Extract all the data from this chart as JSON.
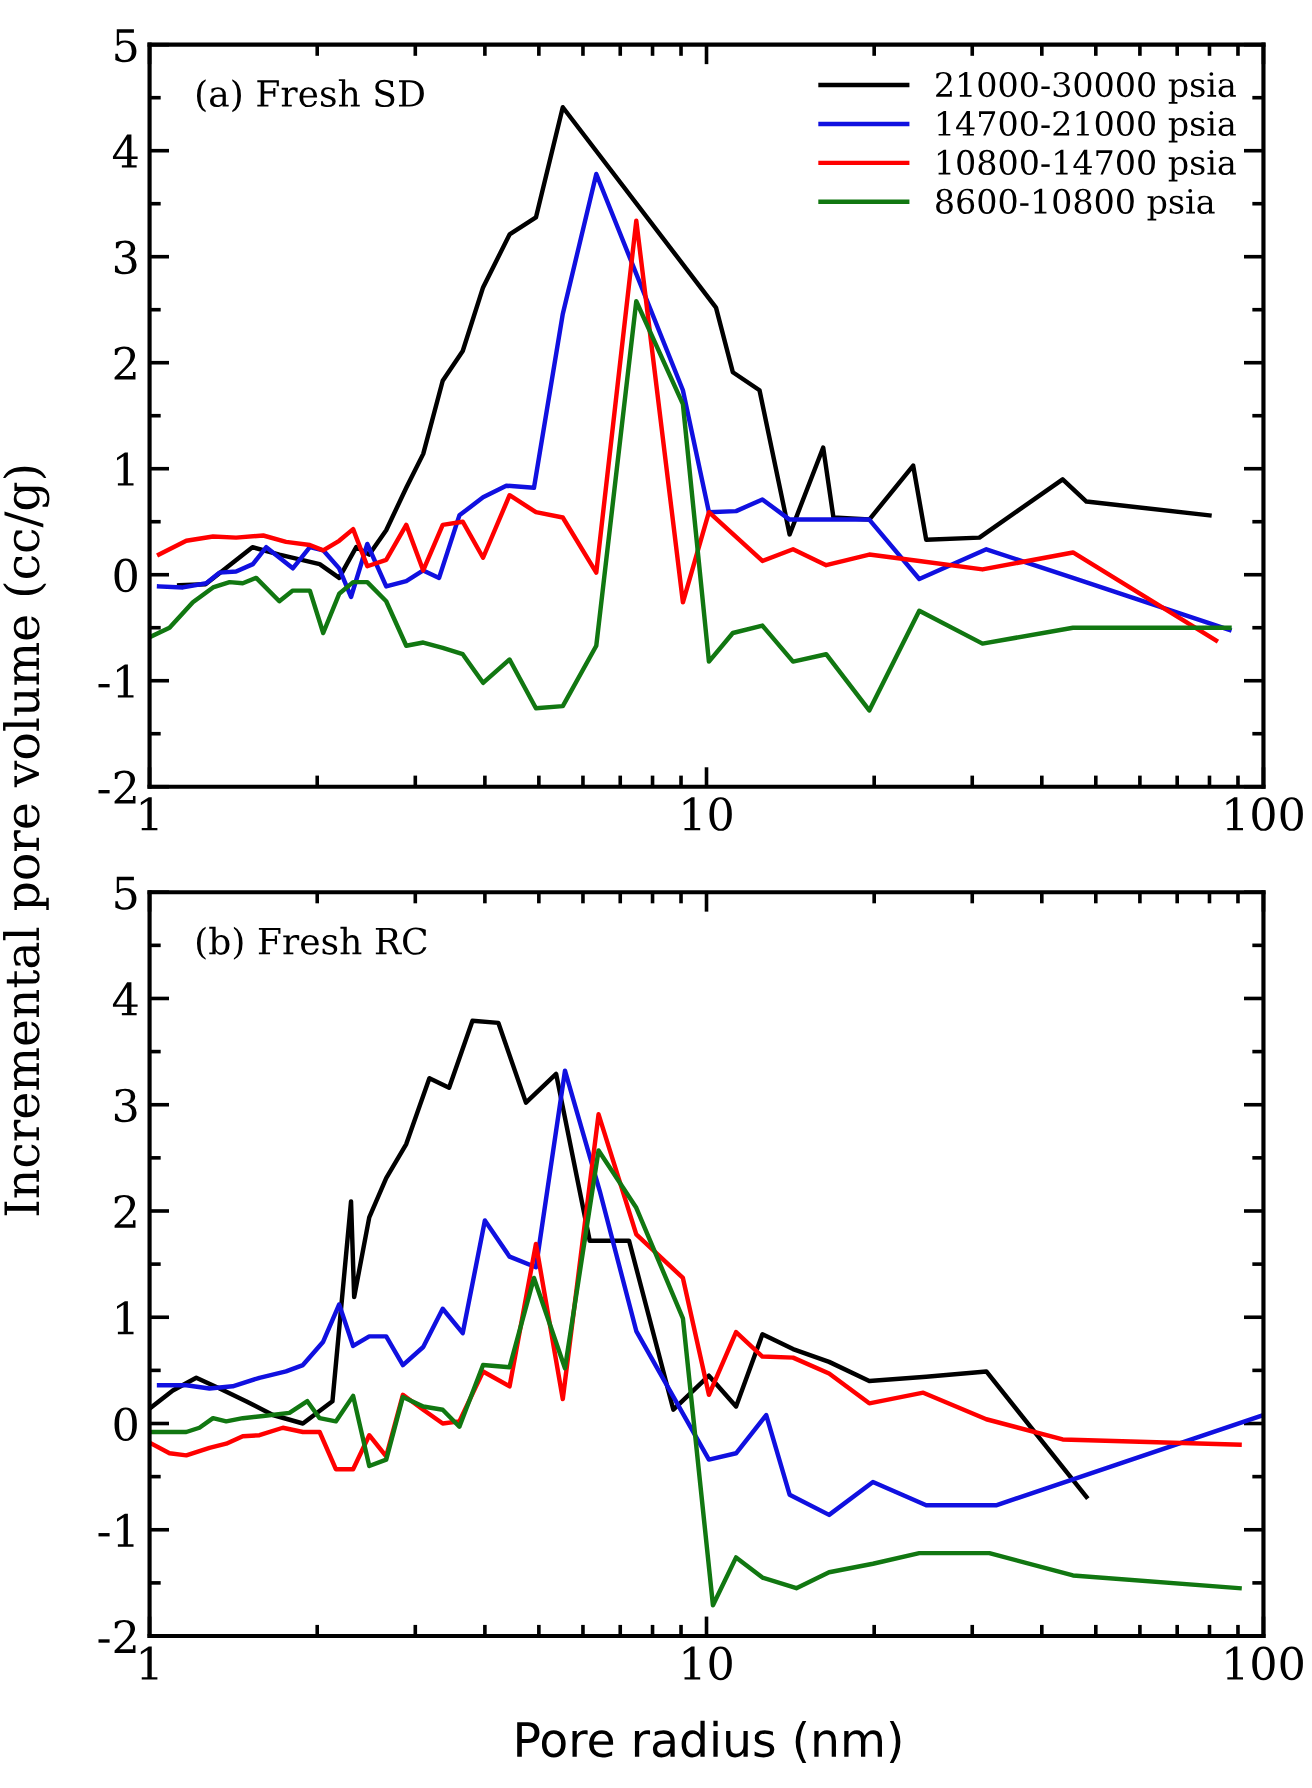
{
  "chart_data": [
    {
      "type": "line",
      "ylabel": "Incremental pore volume (cc/g)",
      "annotations": [
        "(a) Fresh SD"
      ],
      "log": "x",
      "xlim": [
        1,
        100
      ],
      "xticks": [
        1,
        10,
        100
      ],
      "ylim": [
        -2,
        5
      ],
      "yticks": [
        -2,
        -1,
        0,
        1,
        2,
        3,
        4,
        5
      ],
      "grid": false,
      "legend": "top right",
      "series": [
        {
          "name": "21000-30000 psia",
          "color": "#000000",
          "x": [
            1.13,
            1.26,
            1.53,
            1.71,
            2.02,
            2.19,
            2.35,
            2.48,
            2.66,
            2.89,
            3.1,
            3.36,
            3.65,
            3.97,
            4.43,
            4.94,
            5.52,
            10.4,
            11.15,
            12.45,
            14.1,
            16.2,
            16.9,
            19.6,
            23.5,
            24.8,
            30.9,
            43.6,
            48.1,
            80.0
          ],
          "values": [
            -0.1,
            -0.09,
            0.26,
            0.19,
            0.1,
            -0.03,
            0.26,
            0.19,
            0.42,
            0.82,
            1.14,
            1.83,
            2.11,
            2.71,
            3.21,
            3.37,
            4.41,
            2.52,
            1.91,
            1.74,
            0.38,
            1.2,
            0.54,
            0.52,
            1.03,
            0.33,
            0.35,
            0.9,
            0.69,
            0.56
          ]
        },
        {
          "name": "14700-21000 psia",
          "color": "#1010e0",
          "x": [
            1.04,
            1.148,
            1.264,
            1.336,
            1.43,
            1.533,
            1.62,
            1.808,
            1.94,
            2.05,
            2.19,
            2.3,
            2.46,
            2.66,
            2.89,
            3.1,
            3.31,
            3.6,
            3.97,
            4.37,
            4.9,
            5.52,
            6.34,
            9.07,
            10.1,
            11.3,
            12.6,
            14.1,
            19.6,
            24.1,
            31.8,
            45.5,
            86.9
          ],
          "values": [
            -0.11,
            -0.12,
            -0.08,
            0.02,
            0.03,
            0.1,
            0.26,
            0.06,
            0.26,
            0.23,
            0.06,
            -0.21,
            0.29,
            -0.11,
            -0.06,
            0.04,
            -0.03,
            0.56,
            0.73,
            0.84,
            0.82,
            2.46,
            3.78,
            1.74,
            0.59,
            0.6,
            0.71,
            0.52,
            0.52,
            -0.04,
            0.24,
            -0.03,
            -0.52
          ]
        },
        {
          "name": "10800-14700 psia",
          "color": "#ff0000",
          "x": [
            1.04,
            1.164,
            1.3,
            1.43,
            1.6,
            1.758,
            1.94,
            2.05,
            2.19,
            2.32,
            2.46,
            2.66,
            2.89,
            3.1,
            3.36,
            3.65,
            3.97,
            4.43,
            4.94,
            5.52,
            6.34,
            7.48,
            9.07,
            10.1,
            12.6,
            14.3,
            16.4,
            19.6,
            24.1,
            31.3,
            45.5,
            82.2
          ],
          "values": [
            0.19,
            0.32,
            0.36,
            0.35,
            0.37,
            0.31,
            0.28,
            0.23,
            0.32,
            0.43,
            0.08,
            0.14,
            0.47,
            0.04,
            0.47,
            0.5,
            0.16,
            0.75,
            0.59,
            0.54,
            0.02,
            3.34,
            -0.26,
            0.59,
            0.13,
            0.24,
            0.09,
            0.19,
            0.13,
            0.05,
            0.21,
            -0.62
          ]
        },
        {
          "name": "8600-10800 psia",
          "color": "#117711",
          "x": [
            1.0,
            1.086,
            1.196,
            1.3,
            1.392,
            1.47,
            1.554,
            1.71,
            1.808,
            1.94,
            2.05,
            2.19,
            2.32,
            2.46,
            2.66,
            2.89,
            3.1,
            3.36,
            3.65,
            3.97,
            4.43,
            4.94,
            5.52,
            6.34,
            7.48,
            9.07,
            10.1,
            11.15,
            12.6,
            14.3,
            16.4,
            19.6,
            24.1,
            31.3,
            45.5,
            86.9
          ],
          "values": [
            -0.59,
            -0.5,
            -0.26,
            -0.12,
            -0.07,
            -0.08,
            -0.03,
            -0.25,
            -0.15,
            -0.15,
            -0.55,
            -0.18,
            -0.07,
            -0.07,
            -0.25,
            -0.67,
            -0.64,
            -0.69,
            -0.75,
            -1.02,
            -0.8,
            -1.26,
            -1.24,
            -0.67,
            2.58,
            1.61,
            -0.82,
            -0.55,
            -0.48,
            -0.82,
            -0.75,
            -1.28,
            -0.34,
            -0.65,
            -0.5,
            -0.5
          ]
        }
      ]
    },
    {
      "type": "line",
      "xlabel": "Pore radius (nm)",
      "annotations": [
        "(b) Fresh RC"
      ],
      "log": "x",
      "xlim": [
        1,
        100
      ],
      "xticks": [
        1,
        10,
        100
      ],
      "ylim": [
        -2,
        5
      ],
      "yticks": [
        -2,
        -1,
        0,
        1,
        2,
        3,
        4,
        5
      ],
      "grid": false,
      "legend": false,
      "series": [
        {
          "color": "#000000",
          "x": [
            1.0,
            1.101,
            1.213,
            1.336,
            1.49,
            1.665,
            1.885,
            2.13,
            2.3,
            2.33,
            2.48,
            2.66,
            2.89,
            3.18,
            3.45,
            3.8,
            4.23,
            4.74,
            5.37,
            6.17,
            7.26,
            8.72,
            10.1,
            11.3,
            12.6,
            14.3,
            16.6,
            19.6,
            24.8,
            31.8,
            48.1
          ],
          "values": [
            0.14,
            0.31,
            0.43,
            0.33,
            0.21,
            0.08,
            0.0,
            0.21,
            2.09,
            1.19,
            1.94,
            2.31,
            2.63,
            3.25,
            3.16,
            3.79,
            3.77,
            3.02,
            3.29,
            1.72,
            1.72,
            0.13,
            0.45,
            0.16,
            0.84,
            0.7,
            0.58,
            0.4,
            0.44,
            0.49,
            -0.69
          ]
        },
        {
          "color": "#1010e0",
          "x": [
            1.04,
            1.164,
            1.281,
            1.41,
            1.575,
            1.758,
            1.885,
            2.05,
            2.19,
            2.32,
            2.48,
            2.66,
            2.85,
            3.1,
            3.36,
            3.65,
            4.0,
            4.43,
            4.94,
            5.57,
            6.43,
            7.48,
            10.1,
            11.3,
            12.8,
            14.1,
            16.6,
            19.9,
            24.8,
            33.1,
            100
          ],
          "values": [
            0.36,
            0.36,
            0.33,
            0.35,
            0.43,
            0.49,
            0.55,
            0.77,
            1.12,
            0.73,
            0.82,
            0.82,
            0.55,
            0.72,
            1.08,
            0.85,
            1.91,
            1.57,
            1.47,
            3.32,
            2.19,
            0.87,
            -0.34,
            -0.28,
            0.08,
            -0.67,
            -0.86,
            -0.55,
            -0.77,
            -0.77,
            0.08
          ]
        },
        {
          "color": "#ff0000",
          "x": [
            1.0,
            1.086,
            1.164,
            1.281,
            1.373,
            1.47,
            1.575,
            1.735,
            1.885,
            2.02,
            2.16,
            2.32,
            2.48,
            2.66,
            2.85,
            3.1,
            3.36,
            3.6,
            3.97,
            4.43,
            4.94,
            5.52,
            6.4,
            7.48,
            9.07,
            10.1,
            11.3,
            12.6,
            14.3,
            16.6,
            19.6,
            24.5,
            31.8,
            43.6,
            90.6
          ],
          "values": [
            -0.18,
            -0.28,
            -0.3,
            -0.23,
            -0.19,
            -0.12,
            -0.11,
            -0.04,
            -0.08,
            -0.08,
            -0.43,
            -0.43,
            -0.11,
            -0.31,
            0.27,
            0.13,
            0.0,
            0.02,
            0.49,
            0.35,
            1.69,
            0.23,
            2.91,
            1.78,
            1.37,
            0.27,
            0.86,
            0.63,
            0.62,
            0.47,
            0.19,
            0.29,
            0.04,
            -0.15,
            -0.2
          ]
        },
        {
          "color": "#117711",
          "x": [
            1.0,
            1.164,
            1.229,
            1.3,
            1.373,
            1.47,
            1.6,
            1.783,
            1.92,
            2.02,
            2.16,
            2.32,
            2.48,
            2.66,
            2.85,
            3.1,
            3.36,
            3.6,
            3.97,
            4.43,
            4.9,
            5.57,
            6.4,
            7.48,
            9.07,
            10.27,
            11.3,
            12.6,
            14.5,
            16.6,
            19.9,
            24.1,
            32.2,
            45.5,
            90.6
          ],
          "values": [
            -0.08,
            -0.08,
            -0.04,
            0.05,
            0.02,
            0.05,
            0.07,
            0.1,
            0.21,
            0.05,
            0.02,
            0.26,
            -0.4,
            -0.34,
            0.25,
            0.16,
            0.13,
            -0.03,
            0.55,
            0.53,
            1.37,
            0.52,
            2.57,
            2.03,
            0.99,
            -1.71,
            -1.26,
            -1.45,
            -1.55,
            -1.4,
            -1.32,
            -1.22,
            -1.22,
            -1.43,
            -1.55
          ]
        }
      ]
    }
  ]
}
